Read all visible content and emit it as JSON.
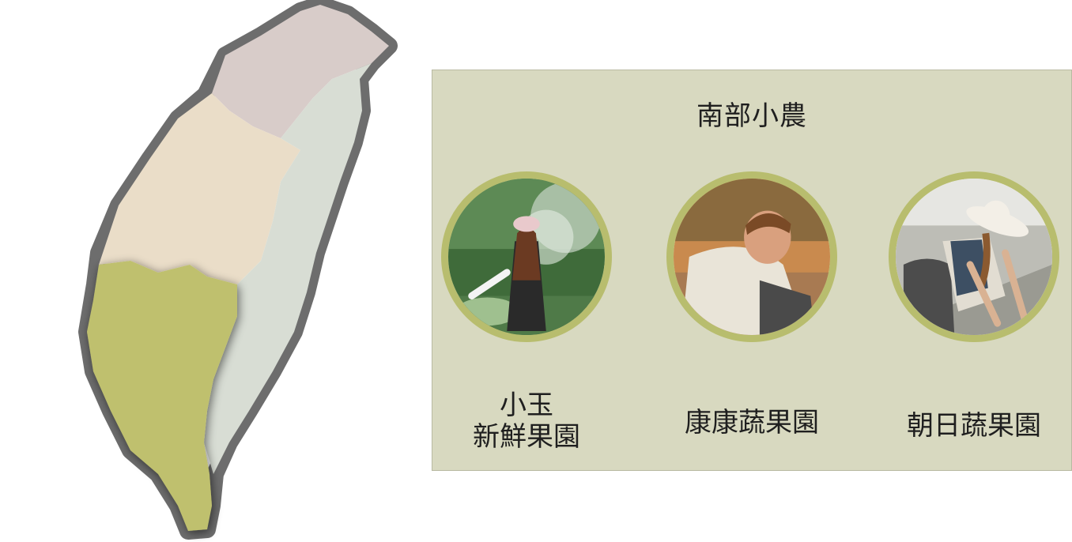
{
  "panel": {
    "title": "南部小農"
  },
  "map": {
    "regions": [
      {
        "name": "north",
        "color": "#d8ccc9"
      },
      {
        "name": "central",
        "color": "#eaddc8"
      },
      {
        "name": "east",
        "color": "#d8ddd4"
      },
      {
        "name": "south",
        "color": "#bfc06e",
        "selected": true
      }
    ],
    "outline_color": "#6d6d6d"
  },
  "farms": [
    {
      "name_line1": "小玉",
      "name_line2": "新鮮果園",
      "photo_icon": "farmer-watering-photo"
    },
    {
      "name_line1": "康康蔬果園",
      "name_line2": "",
      "photo_icon": "farmer-kneeling-photo"
    },
    {
      "name_line1": "朝日蔬果園",
      "name_line2": "",
      "photo_icon": "farmer-planting-photo"
    }
  ],
  "colors": {
    "panel_bg": "#d8d9c0",
    "portrait_ring": "#b8bd6e"
  }
}
